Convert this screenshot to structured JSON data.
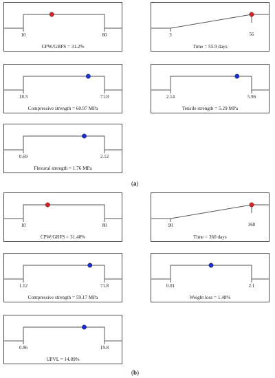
{
  "colors": {
    "red": "#e02020",
    "blue": "#1c2fd0",
    "line": "#555555"
  },
  "sections": [
    {
      "label_prefix": "(",
      "label_letter": "a",
      "label_suffix": ")",
      "panels": [
        {
          "shape": "plateau",
          "min_label": "10",
          "max_label": "80",
          "fraction": 0.35,
          "dot": "red",
          "caption": "CPW/GBFS = 31.2%"
        },
        {
          "shape": "ramp",
          "min_label": "3",
          "max_label": "56",
          "fraction": 1.0,
          "dot": "red",
          "caption": "Time = 55.9 days"
        },
        {
          "shape": "plateau",
          "min_label": "18.3",
          "max_label": "71.8",
          "fraction": 0.8,
          "dot": "blue",
          "caption": "Compressive strength = 60.97 MPa"
        },
        {
          "shape": "plateau",
          "min_label": "2.14",
          "max_label": "5.96",
          "fraction": 0.82,
          "dot": "blue",
          "caption": "Tensile strength = 5.29 MPa"
        },
        {
          "shape": "plateau",
          "min_label": "0.69",
          "max_label": "2.12",
          "fraction": 0.75,
          "dot": "blue",
          "caption": "Flexural strength = 1.76 MPa"
        }
      ]
    },
    {
      "label_prefix": "(",
      "label_letter": "b",
      "label_suffix": ")",
      "panels": [
        {
          "shape": "plateau",
          "min_label": "10",
          "max_label": "80",
          "fraction": 0.3,
          "dot": "red",
          "caption": "CPW/GBFS = 31.48%"
        },
        {
          "shape": "ramp",
          "min_label": "90",
          "max_label": "360",
          "fraction": 1.0,
          "dot": "red",
          "caption": "Time = 360 days"
        },
        {
          "shape": "plateau",
          "min_label": "1.12",
          "max_label": "71.8",
          "fraction": 0.82,
          "dot": "blue",
          "caption": "Compressive strength = 59.17 MPa"
        },
        {
          "shape": "plateau",
          "min_label": "0.01",
          "max_label": "2.1",
          "fraction": 0.5,
          "dot": "blue",
          "caption": "Weight loss = 1.48%"
        },
        {
          "shape": "plateau",
          "min_label": "0.86",
          "max_label": "19.8",
          "fraction": 0.75,
          "dot": "blue",
          "caption": "UPVL = 14.89%"
        }
      ]
    }
  ]
}
